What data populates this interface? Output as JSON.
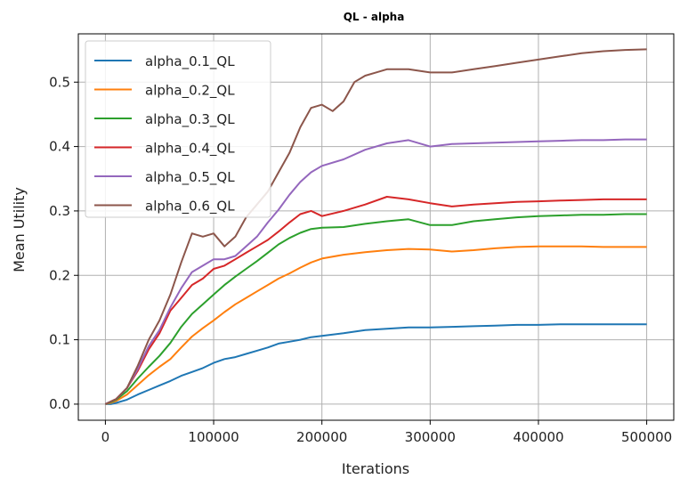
{
  "chart_data": {
    "type": "line",
    "title": "QL - alpha",
    "xlabel": "Iterations",
    "ylabel": "Mean Utility",
    "xlim": [
      -25000,
      525000
    ],
    "ylim": [
      -0.025,
      0.575
    ],
    "xticks": [
      0,
      100000,
      200000,
      300000,
      400000,
      500000
    ],
    "yticks": [
      0.0,
      0.1,
      0.2,
      0.3,
      0.4,
      0.5
    ],
    "xtick_labels": [
      "0",
      "100000",
      "200000",
      "300000",
      "400000",
      "500000"
    ],
    "ytick_labels": [
      "0.0",
      "0.1",
      "0.2",
      "0.3",
      "0.4",
      "0.5"
    ],
    "grid": true,
    "legend_position": "top-left",
    "series": [
      {
        "name": "alpha_0.1_QL",
        "color": "#1f77b4",
        "x": [
          0,
          5000,
          10000,
          20000,
          30000,
          40000,
          50000,
          60000,
          70000,
          80000,
          90000,
          100000,
          110000,
          120000,
          130000,
          140000,
          150000,
          160000,
          170000,
          180000,
          190000,
          200000,
          220000,
          240000,
          260000,
          280000,
          300000,
          320000,
          340000,
          360000,
          380000,
          400000,
          420000,
          440000,
          460000,
          480000,
          500000
        ],
        "y": [
          0.0,
          0.0,
          0.002,
          0.007,
          0.015,
          0.022,
          0.029,
          0.036,
          0.044,
          0.05,
          0.056,
          0.064,
          0.07,
          0.073,
          0.078,
          0.083,
          0.088,
          0.094,
          0.097,
          0.1,
          0.104,
          0.106,
          0.11,
          0.115,
          0.117,
          0.119,
          0.119,
          0.12,
          0.121,
          0.122,
          0.123,
          0.123,
          0.124,
          0.124,
          0.124,
          0.124,
          0.124
        ]
      },
      {
        "name": "alpha_0.2_QL",
        "color": "#ff7f0e",
        "x": [
          0,
          5000,
          10000,
          20000,
          30000,
          40000,
          50000,
          60000,
          70000,
          80000,
          90000,
          100000,
          110000,
          120000,
          130000,
          140000,
          150000,
          160000,
          170000,
          180000,
          190000,
          200000,
          220000,
          240000,
          260000,
          280000,
          300000,
          320000,
          340000,
          360000,
          380000,
          400000,
          420000,
          440000,
          460000,
          480000,
          500000
        ],
        "y": [
          0.0,
          0.002,
          0.005,
          0.015,
          0.03,
          0.045,
          0.058,
          0.07,
          0.088,
          0.105,
          0.118,
          0.13,
          0.143,
          0.155,
          0.165,
          0.175,
          0.185,
          0.195,
          0.203,
          0.212,
          0.22,
          0.226,
          0.232,
          0.236,
          0.239,
          0.241,
          0.24,
          0.237,
          0.239,
          0.242,
          0.244,
          0.245,
          0.245,
          0.245,
          0.244,
          0.244,
          0.244
        ]
      },
      {
        "name": "alpha_0.3_QL",
        "color": "#2ca02c",
        "x": [
          0,
          5000,
          10000,
          20000,
          30000,
          40000,
          50000,
          60000,
          70000,
          80000,
          90000,
          100000,
          110000,
          120000,
          130000,
          140000,
          150000,
          160000,
          170000,
          180000,
          190000,
          200000,
          220000,
          240000,
          260000,
          280000,
          300000,
          320000,
          340000,
          360000,
          380000,
          400000,
          420000,
          440000,
          460000,
          480000,
          500000
        ],
        "y": [
          0.0,
          0.003,
          0.007,
          0.02,
          0.04,
          0.058,
          0.075,
          0.095,
          0.12,
          0.14,
          0.155,
          0.17,
          0.185,
          0.198,
          0.21,
          0.222,
          0.235,
          0.248,
          0.258,
          0.266,
          0.272,
          0.274,
          0.275,
          0.28,
          0.284,
          0.287,
          0.278,
          0.278,
          0.284,
          0.287,
          0.29,
          0.292,
          0.293,
          0.294,
          0.294,
          0.295,
          0.295
        ]
      },
      {
        "name": "alpha_0.4_QL",
        "color": "#d62728",
        "x": [
          0,
          5000,
          10000,
          20000,
          30000,
          40000,
          50000,
          60000,
          70000,
          80000,
          90000,
          100000,
          110000,
          120000,
          130000,
          140000,
          150000,
          160000,
          170000,
          180000,
          190000,
          200000,
          220000,
          240000,
          260000,
          280000,
          300000,
          320000,
          340000,
          360000,
          380000,
          400000,
          420000,
          440000,
          460000,
          480000,
          500000
        ],
        "y": [
          0.0,
          0.004,
          0.008,
          0.025,
          0.052,
          0.085,
          0.11,
          0.145,
          0.165,
          0.185,
          0.195,
          0.21,
          0.215,
          0.225,
          0.235,
          0.245,
          0.255,
          0.268,
          0.282,
          0.295,
          0.3,
          0.292,
          0.3,
          0.31,
          0.322,
          0.318,
          0.312,
          0.307,
          0.31,
          0.312,
          0.314,
          0.315,
          0.316,
          0.317,
          0.318,
          0.318,
          0.318
        ]
      },
      {
        "name": "alpha_0.5_QL",
        "color": "#9467bd",
        "x": [
          0,
          5000,
          10000,
          20000,
          30000,
          40000,
          50000,
          60000,
          70000,
          80000,
          90000,
          100000,
          110000,
          120000,
          130000,
          140000,
          150000,
          160000,
          170000,
          180000,
          190000,
          200000,
          220000,
          240000,
          260000,
          280000,
          300000,
          320000,
          340000,
          360000,
          380000,
          400000,
          420000,
          440000,
          460000,
          480000,
          500000
        ],
        "y": [
          0.0,
          0.004,
          0.008,
          0.025,
          0.055,
          0.09,
          0.115,
          0.15,
          0.18,
          0.205,
          0.215,
          0.225,
          0.225,
          0.23,
          0.245,
          0.26,
          0.282,
          0.302,
          0.325,
          0.345,
          0.36,
          0.37,
          0.38,
          0.395,
          0.405,
          0.41,
          0.4,
          0.404,
          0.405,
          0.406,
          0.407,
          0.408,
          0.409,
          0.41,
          0.41,
          0.411,
          0.411
        ]
      },
      {
        "name": "alpha_0.6_QL",
        "color": "#8c564b",
        "x": [
          0,
          5000,
          10000,
          20000,
          30000,
          40000,
          50000,
          60000,
          70000,
          80000,
          90000,
          100000,
          110000,
          120000,
          130000,
          140000,
          150000,
          160000,
          170000,
          180000,
          190000,
          200000,
          210000,
          220000,
          230000,
          240000,
          250000,
          260000,
          280000,
          300000,
          320000,
          340000,
          360000,
          380000,
          400000,
          420000,
          440000,
          460000,
          480000,
          500000
        ],
        "y": [
          0.0,
          0.004,
          0.008,
          0.025,
          0.06,
          0.1,
          0.13,
          0.17,
          0.22,
          0.265,
          0.26,
          0.265,
          0.245,
          0.26,
          0.29,
          0.31,
          0.33,
          0.36,
          0.39,
          0.43,
          0.46,
          0.465,
          0.455,
          0.47,
          0.5,
          0.51,
          0.515,
          0.52,
          0.52,
          0.515,
          0.515,
          0.52,
          0.525,
          0.53,
          0.535,
          0.54,
          0.545,
          0.548,
          0.55,
          0.551
        ]
      }
    ]
  }
}
